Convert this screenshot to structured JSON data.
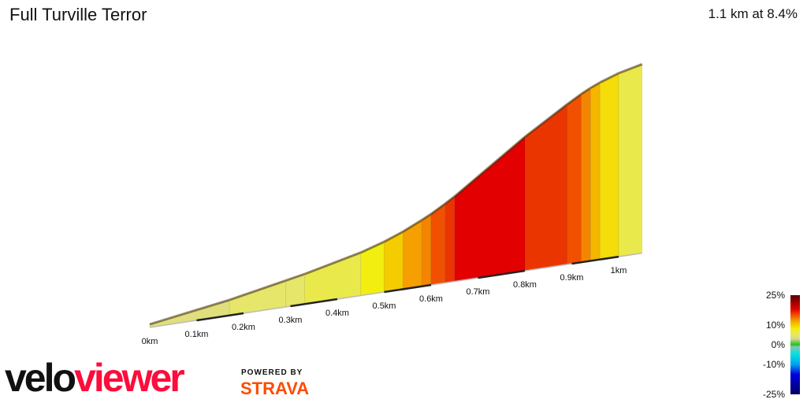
{
  "header": {
    "title": "Full Turville Terror",
    "summary": "1.1 km at 8.4%"
  },
  "chart_data": {
    "type": "area",
    "title": "Full Turville Terror",
    "xlabel": "",
    "ylabel": "",
    "x_ticks": [
      "0km",
      "0.1km",
      "0.2km",
      "0.3km",
      "0.4km",
      "0.5km",
      "0.6km",
      "0.7km",
      "0.8km",
      "0.9km",
      "1km"
    ],
    "segments": [
      {
        "start_km": 0,
        "end_km": 0.17,
        "gradient": 4
      },
      {
        "start_km": 0.17,
        "end_km": 0.29,
        "gradient": 5
      },
      {
        "start_km": 0.29,
        "end_km": 0.33,
        "gradient": 5
      },
      {
        "start_km": 0.33,
        "end_km": 0.45,
        "gradient": 6
      },
      {
        "start_km": 0.45,
        "end_km": 0.5,
        "gradient": 8
      },
      {
        "start_km": 0.5,
        "end_km": 0.54,
        "gradient": 10
      },
      {
        "start_km": 0.54,
        "end_km": 0.58,
        "gradient": 12
      },
      {
        "start_km": 0.58,
        "end_km": 0.6,
        "gradient": 13
      },
      {
        "start_km": 0.6,
        "end_km": 0.63,
        "gradient": 15
      },
      {
        "start_km": 0.63,
        "end_km": 0.65,
        "gradient": 16
      },
      {
        "start_km": 0.65,
        "end_km": 0.8,
        "gradient": 18
      },
      {
        "start_km": 0.8,
        "end_km": 0.89,
        "gradient": 16
      },
      {
        "start_km": 0.89,
        "end_km": 0.92,
        "gradient": 15
      },
      {
        "start_km": 0.92,
        "end_km": 0.94,
        "gradient": 13
      },
      {
        "start_km": 0.94,
        "end_km": 0.96,
        "gradient": 11
      },
      {
        "start_km": 0.96,
        "end_km": 1.0,
        "gradient": 9
      },
      {
        "start_km": 1.0,
        "end_km": 1.05,
        "gradient": 6
      }
    ],
    "legend": {
      "labels": [
        "25%",
        "10%",
        "0%",
        "-10%",
        "-25%"
      ],
      "values": [
        25,
        10,
        0,
        -10,
        -25
      ],
      "placement": "bottom-right"
    },
    "colorscale": [
      {
        "v": -25,
        "c": "#000060"
      },
      {
        "v": -15,
        "c": "#0000e0"
      },
      {
        "v": -10,
        "c": "#00a0f0"
      },
      {
        "v": -5,
        "c": "#00e0e0"
      },
      {
        "v": -1,
        "c": "#80c8b0"
      },
      {
        "v": 0,
        "c": "#20c020"
      },
      {
        "v": 3,
        "c": "#d8d890"
      },
      {
        "v": 5,
        "c": "#e6e66a"
      },
      {
        "v": 8,
        "c": "#f2ee10"
      },
      {
        "v": 10,
        "c": "#f5cc00"
      },
      {
        "v": 12,
        "c": "#f5a000"
      },
      {
        "v": 15,
        "c": "#f05000"
      },
      {
        "v": 18,
        "c": "#e20000"
      },
      {
        "v": 25,
        "c": "#5a0000"
      }
    ]
  },
  "branding": {
    "logo_velo": "velo",
    "logo_viewer": "viewer",
    "powered_by": "POWERED BY",
    "strava": "STRAVA"
  }
}
